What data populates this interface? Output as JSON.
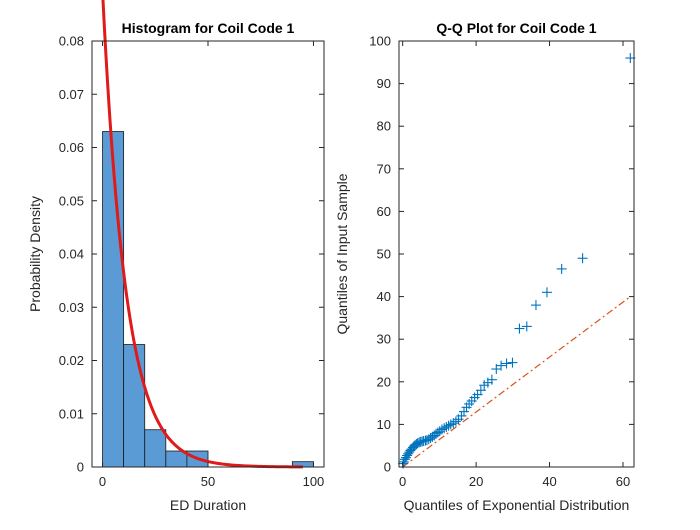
{
  "figure": {
    "background": "#ffffff"
  },
  "chart_data": [
    {
      "type": "histogram",
      "title": "Histogram for Coil Code 1",
      "xlabel": "ED Duration",
      "ylabel": "Probability Density",
      "xlim": [
        -5,
        105
      ],
      "ylim": [
        0,
        0.08
      ],
      "xticks": [
        0,
        50,
        100
      ],
      "yticks": [
        0,
        0.01,
        0.02,
        0.03,
        0.04,
        0.05,
        0.06,
        0.07,
        0.08
      ],
      "ytick_labels": [
        "0",
        "0.01",
        "0.02",
        "0.03",
        "0.04",
        "0.05",
        "0.06",
        "0.07",
        "0.08"
      ],
      "bin_edges": [
        0,
        10,
        20,
        30,
        40,
        50,
        60,
        70,
        80,
        90,
        100
      ],
      "values": [
        0.063,
        0.023,
        0.007,
        0.003,
        0.003,
        0,
        0,
        0,
        0,
        0.001
      ],
      "bar_color": "#5b9bd5",
      "fit_curve": {
        "name": "exponential fit",
        "mean": 11.2,
        "x_range": [
          0,
          95
        ],
        "color": "#e01a1a"
      }
    },
    {
      "type": "scatter",
      "title": "Q-Q Plot for Coil Code 1",
      "xlabel": "Quantiles of Exponential Distribution",
      "ylabel": "Quantiles of Input Sample",
      "xlim": [
        -1,
        63
      ],
      "ylim": [
        0,
        100
      ],
      "xticks": [
        0,
        20,
        40,
        60
      ],
      "yticks": [
        0,
        10,
        20,
        30,
        40,
        50,
        60,
        70,
        80,
        90,
        100
      ],
      "marker": "+",
      "marker_color": "#0072bd",
      "reference_line": {
        "x": [
          0,
          62
        ],
        "y": [
          0,
          40
        ],
        "style": "dash-dot",
        "color": "#d95319"
      },
      "points": [
        [
          0.1,
          0.8
        ],
        [
          0.3,
          1.2
        ],
        [
          0.6,
          1.8
        ],
        [
          0.9,
          2.2
        ],
        [
          1.2,
          2.7
        ],
        [
          1.5,
          3.1
        ],
        [
          1.8,
          3.5
        ],
        [
          2.1,
          3.9
        ],
        [
          2.4,
          4.2
        ],
        [
          2.8,
          4.6
        ],
        [
          3.1,
          4.9
        ],
        [
          3.4,
          5.2
        ],
        [
          3.8,
          5.4
        ],
        [
          4.1,
          5.6
        ],
        [
          4.5,
          5.8
        ],
        [
          4.9,
          5.9
        ],
        [
          5.3,
          6.0
        ],
        [
          5.7,
          6.1
        ],
        [
          6.2,
          6.2
        ],
        [
          6.6,
          6.3
        ],
        [
          7.1,
          6.5
        ],
        [
          7.6,
          6.8
        ],
        [
          8.1,
          7.1
        ],
        [
          8.6,
          7.4
        ],
        [
          9.1,
          7.8
        ],
        [
          9.6,
          8.1
        ],
        [
          10.1,
          8.4
        ],
        [
          10.7,
          8.8
        ],
        [
          11.3,
          9.1
        ],
        [
          11.9,
          9.4
        ],
        [
          12.5,
          9.7
        ],
        [
          13.1,
          10.0
        ],
        [
          13.8,
          10.3
        ],
        [
          14.5,
          10.7
        ],
        [
          15.2,
          11.2
        ],
        [
          16.0,
          12.0
        ],
        [
          16.7,
          13.0
        ],
        [
          17.4,
          14.0
        ],
        [
          18.1,
          14.8
        ],
        [
          18.8,
          15.5
        ],
        [
          19.6,
          16.3
        ],
        [
          20.4,
          17.0
        ],
        [
          21.3,
          18.0
        ],
        [
          22.2,
          19.2
        ],
        [
          23.2,
          19.8
        ],
        [
          24.3,
          20.5
        ],
        [
          25.5,
          23.0
        ],
        [
          26.8,
          23.8
        ],
        [
          28.3,
          24.3
        ],
        [
          29.9,
          24.5
        ],
        [
          31.8,
          32.5
        ],
        [
          33.8,
          33.0
        ],
        [
          36.3,
          38.0
        ],
        [
          39.3,
          41.0
        ],
        [
          43.3,
          46.5
        ],
        [
          49.0,
          49.0
        ],
        [
          62.0,
          96.0
        ]
      ]
    }
  ]
}
